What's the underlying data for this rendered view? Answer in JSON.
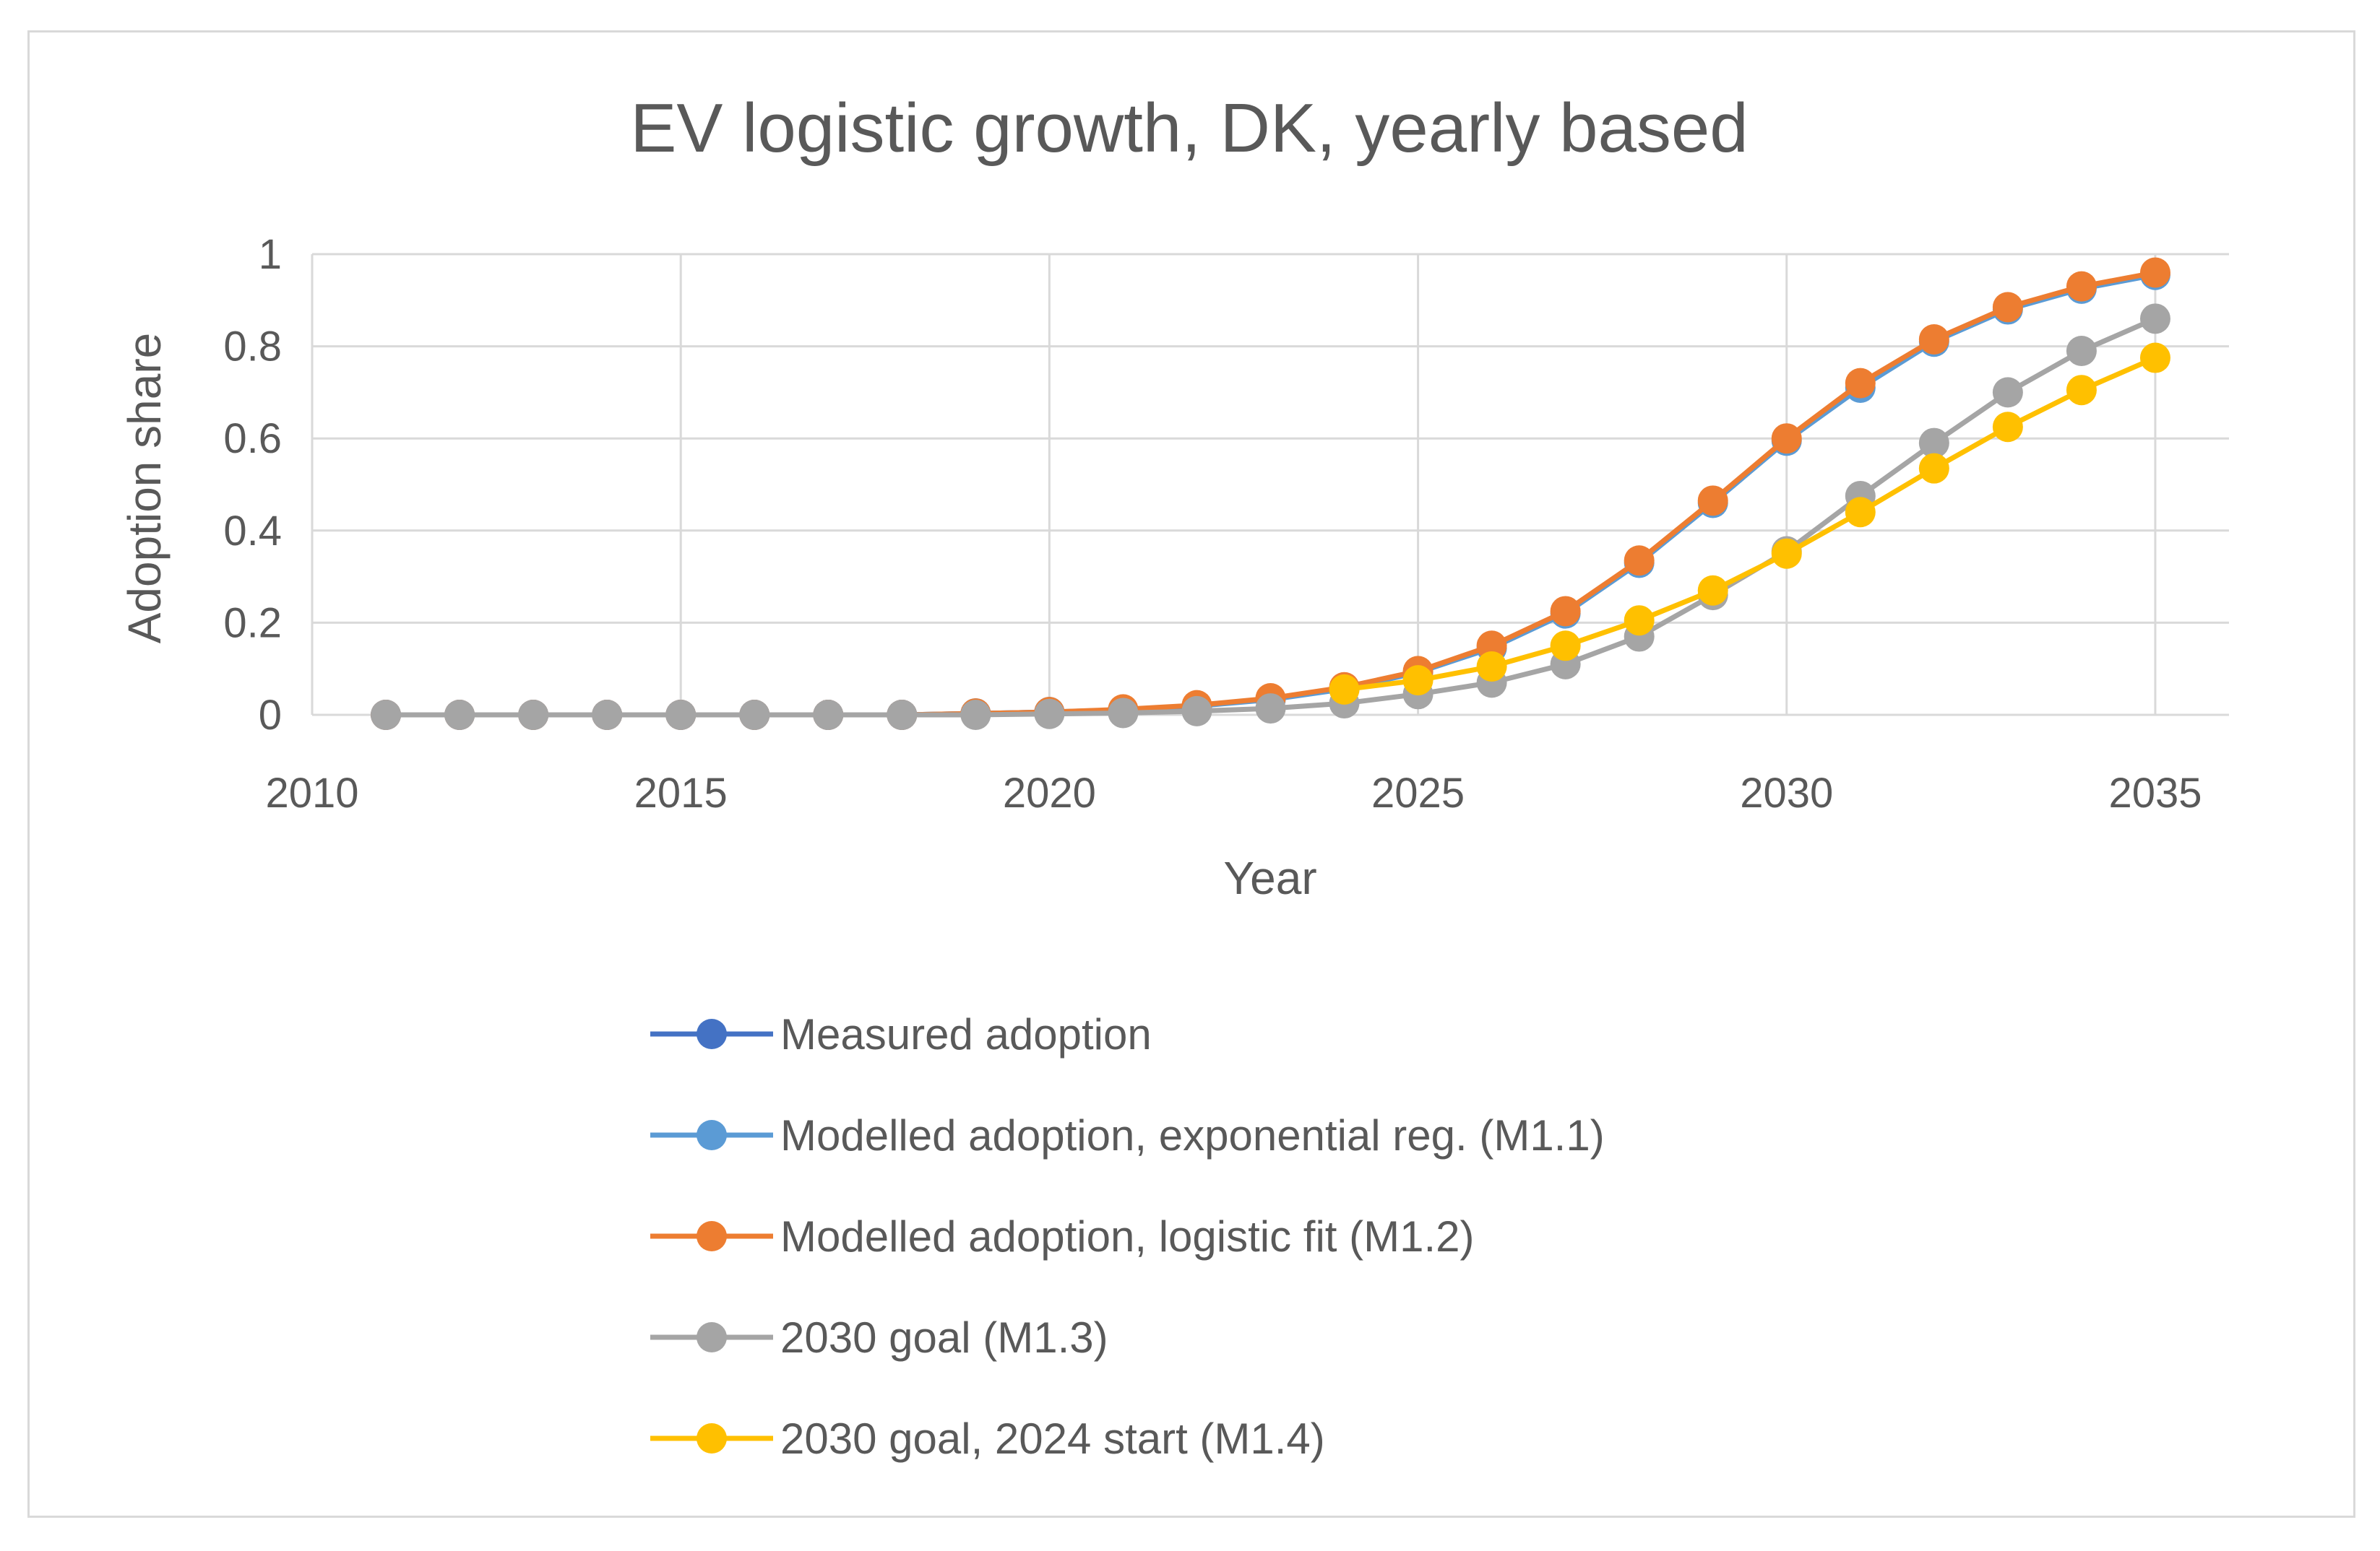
{
  "chart_data": {
    "type": "line",
    "title": "EV logistic growth, DK, yearly based",
    "xlabel": "Year",
    "ylabel": "Adoption share",
    "xlim": [
      2010,
      2036
    ],
    "ylim": [
      0,
      1
    ],
    "x_ticks": [
      "2010",
      "2015",
      "2020",
      "2025",
      "2030",
      "2035"
    ],
    "y_ticks": [
      "0",
      "0.2",
      "0.4",
      "0.6",
      "0.8",
      "1"
    ],
    "grid": true,
    "legend_position": "bottom",
    "x": [
      2011,
      2012,
      2013,
      2014,
      2015,
      2016,
      2017,
      2018,
      2019,
      2020,
      2021,
      2022,
      2023,
      2024,
      2025,
      2026,
      2027,
      2028,
      2029,
      2030,
      2031,
      2032,
      2033,
      2034,
      2035
    ],
    "series": [
      {
        "name": "Measured adoption",
        "color": "#4472c4",
        "values": [
          0,
          0,
          0,
          0,
          0,
          0,
          0,
          0,
          0.003,
          0.006,
          0.01,
          0.017,
          null,
          null,
          null,
          null,
          null,
          null,
          null,
          null,
          null,
          null,
          null,
          null,
          null
        ]
      },
      {
        "name": "Modelled adoption, exponential reg. (M1.1)",
        "color": "#5b9bd5",
        "values": [
          0,
          0,
          0,
          0,
          0,
          0,
          0,
          0,
          0.003,
          0.006,
          0.011,
          0.019,
          0.033,
          0.056,
          0.092,
          0.145,
          0.22,
          0.33,
          0.46,
          0.595,
          0.71,
          0.81,
          0.88,
          0.925,
          0.955
        ]
      },
      {
        "name": "Modelled adoption, logistic fit (M1.2)",
        "color": "#ed7d31",
        "values": [
          0,
          0,
          0,
          0,
          0,
          0,
          0,
          0,
          0.003,
          0.006,
          0.012,
          0.021,
          0.036,
          0.06,
          0.095,
          0.15,
          0.225,
          0.335,
          0.465,
          0.6,
          0.72,
          0.815,
          0.885,
          0.93,
          0.96
        ]
      },
      {
        "name": "2030 goal (M1.3)",
        "color": "#a5a5a5",
        "values": [
          0,
          0,
          0,
          0,
          0,
          0,
          0,
          0,
          0,
          0.002,
          0.004,
          0.008,
          0.014,
          0.025,
          0.045,
          0.07,
          0.11,
          0.17,
          0.26,
          0.355,
          0.475,
          0.59,
          0.7,
          0.79,
          0.86
        ]
      },
      {
        "name": "2030 goal, 2024 start (M1.4)",
        "color": "#ffc000",
        "values": [
          null,
          null,
          null,
          null,
          null,
          null,
          null,
          null,
          null,
          null,
          null,
          null,
          null,
          0.055,
          0.075,
          0.105,
          0.15,
          0.205,
          0.27,
          0.35,
          0.44,
          0.535,
          0.625,
          0.705,
          0.775
        ]
      }
    ]
  }
}
